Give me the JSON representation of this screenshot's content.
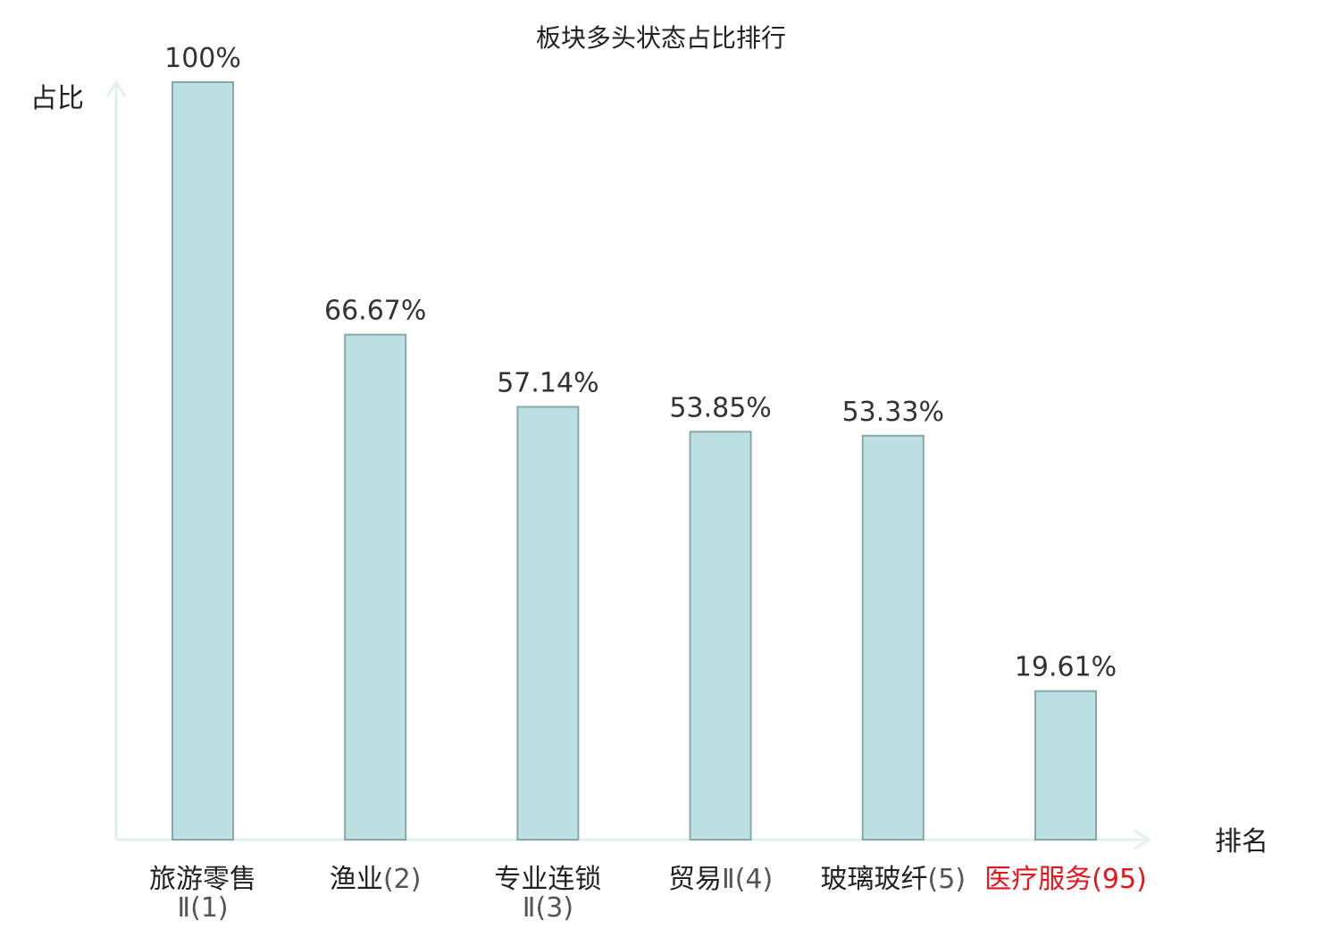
{
  "chart_data": {
    "type": "bar",
    "title": "板块多头状态占比排行",
    "ylabel": "占比",
    "xlabel": "排名",
    "ylim": [
      0,
      100
    ],
    "grid": false,
    "categories": [
      {
        "name": "旅游零售",
        "suffix": "Ⅱ",
        "rank": "(1)",
        "highlight": false
      },
      {
        "name": "渔业",
        "suffix": "",
        "rank": "(2)",
        "highlight": false
      },
      {
        "name": "专业连锁",
        "suffix": "Ⅱ",
        "rank": "(3)",
        "highlight": false
      },
      {
        "name": "贸易",
        "suffix": "Ⅱ",
        "rank": "(4)",
        "highlight": false
      },
      {
        "name": "玻璃玻纤",
        "suffix": "",
        "rank": "(5)",
        "highlight": false
      },
      {
        "name": "医疗服务",
        "suffix": "",
        "rank": "(95)",
        "highlight": true
      }
    ],
    "values": [
      100,
      66.67,
      57.14,
      53.85,
      53.33,
      19.61
    ],
    "value_labels": [
      "100%",
      "66.67%",
      "57.14%",
      "53.85%",
      "53.33%",
      "19.61%"
    ],
    "colors": {
      "bar_fill": "#bde0e3",
      "bar_stroke": "#86a8ab",
      "axis": "#e0f2ef",
      "label_normal": "#222222",
      "rank_normal": "#555555",
      "label_highlight": "#e8141b"
    }
  }
}
